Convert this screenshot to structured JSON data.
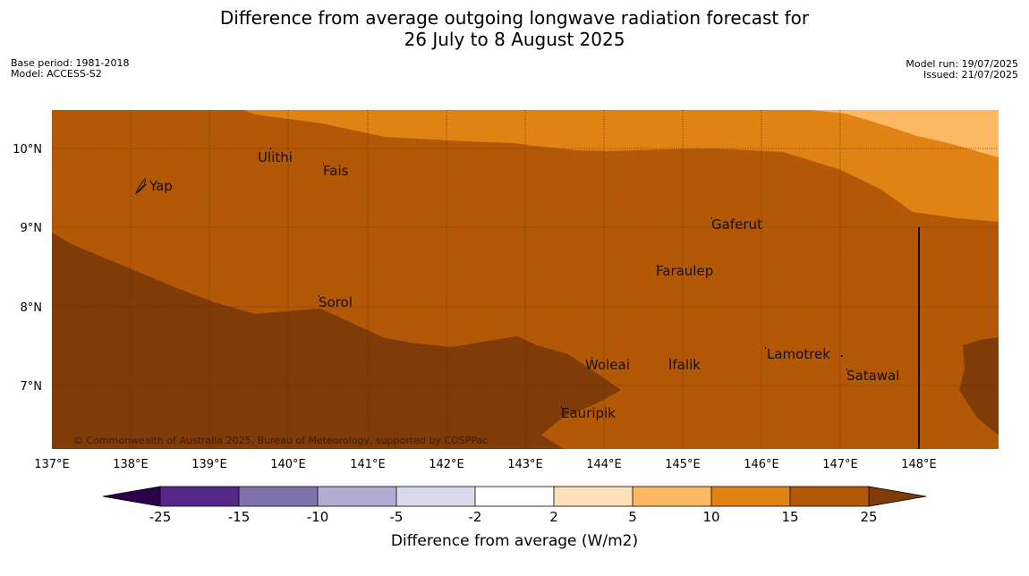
{
  "header": {
    "title_line1": "Difference from average outgoing longwave radiation forecast for",
    "title_line2": "26 July to 8 August 2025",
    "base_period": "Base period: 1981-2018",
    "model": "Model: ACCESS-S2",
    "model_run": "Model run: 19/07/2025",
    "issued": "Issued: 21/07/2025"
  },
  "map": {
    "lon_labels": [
      "137°E",
      "138°E",
      "139°E",
      "140°E",
      "141°E",
      "142°E",
      "143°E",
      "144°E",
      "145°E",
      "146°E",
      "147°E",
      "148°E"
    ],
    "lat_labels": [
      "10°N",
      "9°N",
      "8°N",
      "7°N"
    ],
    "places": [
      "Ulithi",
      "Fais",
      "Yap",
      "Gaferut",
      "Faraulep",
      "Sorol",
      "Lamotrek",
      "Woleai",
      "Ifalik",
      "Satawal",
      "Eauripik"
    ],
    "copyright": "© Commonwealth of Australia 2025, Bureau of Meteorology, supported by COSPPac",
    "colors": {
      "band_25_plus": "#7f3b08",
      "band_15_25": "#b35806",
      "band_10_15": "#e08214",
      "band_5_10": "#fdb863"
    }
  },
  "legend": {
    "title": "Difference from average (W/m2)",
    "ticks": [
      "-25",
      "-15",
      "-10",
      "-5",
      "-2",
      "2",
      "5",
      "10",
      "15",
      "25"
    ],
    "colors": {
      "below_min": "#2d004b",
      "c1": "#542788",
      "c2": "#8073ac",
      "c3": "#b2abd2",
      "c4": "#d8daeb",
      "c5": "#ffffff",
      "c6": "#fee0b6",
      "c7": "#fdb863",
      "c8": "#e08214",
      "c9": "#b35806",
      "above_max": "#7f3b08"
    }
  }
}
